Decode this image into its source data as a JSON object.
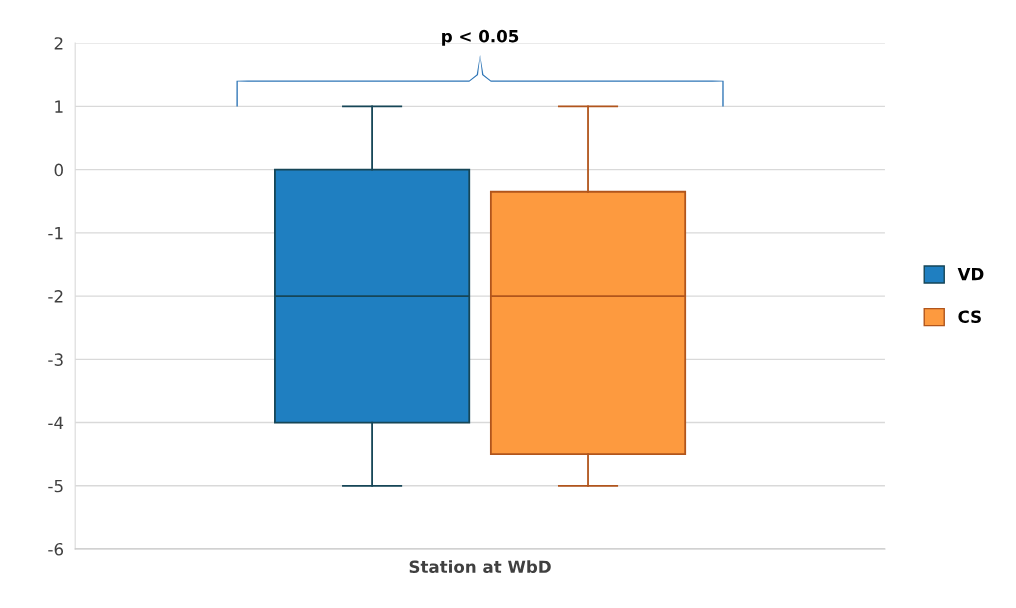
{
  "chart_data": {
    "type": "box",
    "categories": [
      "Station at WbD"
    ],
    "series": [
      {
        "name": "VD",
        "color": "#1f7fc1",
        "boxes": [
          {
            "low": -5,
            "q1": -4,
            "median": -2,
            "q3": 0,
            "high": 1
          }
        ]
      },
      {
        "name": "CS",
        "color": "#fd9a3f",
        "boxes": [
          {
            "low": -5,
            "q1": -4.5,
            "median": -2,
            "q3": -0.35,
            "high": 1
          }
        ]
      }
    ],
    "ylim": [
      -6,
      2
    ],
    "yticks": [
      -6,
      -5,
      -4,
      -3,
      -2,
      -1,
      0,
      1,
      2
    ],
    "grid": "y",
    "legend": "right",
    "annotations": [
      "p < 0.05"
    ]
  }
}
